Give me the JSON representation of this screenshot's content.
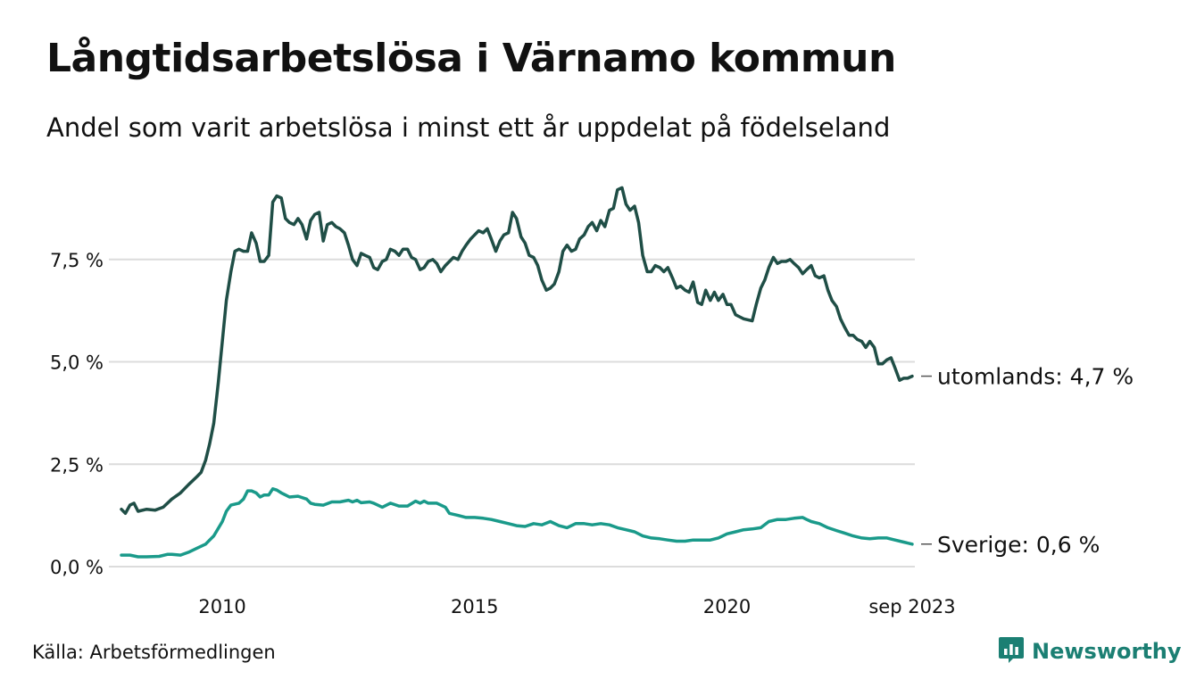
{
  "title": "Långtidsarbetslösa i Värnamo kommun",
  "subtitle": "Andel som varit arbetslösa i minst ett år uppdelat på födelseland",
  "source": "Källa: Arbetsförmedlingen",
  "brand": {
    "name": "Newsworthy",
    "icon": "newsworthy-logo-icon"
  },
  "chart_data": {
    "type": "line",
    "title": "Långtidsarbetslösa i Värnamo kommun",
    "xlabel": "",
    "ylabel": "",
    "xlim": [
      2008.0,
      2023.67
    ],
    "ylim": [
      0,
      9.3
    ],
    "grid": true,
    "x_ticks": [
      {
        "value": 2010,
        "label": "2010"
      },
      {
        "value": 2015,
        "label": "2015"
      },
      {
        "value": 2020,
        "label": "2020"
      },
      {
        "value": 2023.67,
        "label": "sep 2023"
      }
    ],
    "y_ticks": [
      {
        "value": 0,
        "label": "0,0 %"
      },
      {
        "value": 2.5,
        "label": "2,5 %"
      },
      {
        "value": 5.0,
        "label": "5,0 %"
      },
      {
        "value": 7.5,
        "label": "7,5 %"
      }
    ],
    "series": [
      {
        "name": "utomlands",
        "color": "#1f4e46",
        "end_label": "utomlands: 4,7 %",
        "points": [
          [
            2008.0,
            1.4
          ],
          [
            2008.08,
            1.3
          ],
          [
            2008.17,
            1.5
          ],
          [
            2008.25,
            1.55
          ],
          [
            2008.33,
            1.35
          ],
          [
            2008.5,
            1.4
          ],
          [
            2008.67,
            1.38
          ],
          [
            2008.83,
            1.45
          ],
          [
            2009.0,
            1.65
          ],
          [
            2009.17,
            1.8
          ],
          [
            2009.33,
            2.0
          ],
          [
            2009.5,
            2.2
          ],
          [
            2009.58,
            2.3
          ],
          [
            2009.67,
            2.6
          ],
          [
            2009.75,
            3.0
          ],
          [
            2009.83,
            3.5
          ],
          [
            2009.92,
            4.5
          ],
          [
            2010.0,
            5.5
          ],
          [
            2010.08,
            6.5
          ],
          [
            2010.17,
            7.2
          ],
          [
            2010.25,
            7.7
          ],
          [
            2010.33,
            7.75
          ],
          [
            2010.42,
            7.7
          ],
          [
            2010.5,
            7.7
          ],
          [
            2010.58,
            8.15
          ],
          [
            2010.67,
            7.9
          ],
          [
            2010.75,
            7.45
          ],
          [
            2010.83,
            7.45
          ],
          [
            2010.92,
            7.6
          ],
          [
            2011.0,
            8.9
          ],
          [
            2011.08,
            9.05
          ],
          [
            2011.17,
            9.0
          ],
          [
            2011.25,
            8.5
          ],
          [
            2011.33,
            8.4
          ],
          [
            2011.42,
            8.35
          ],
          [
            2011.5,
            8.5
          ],
          [
            2011.58,
            8.35
          ],
          [
            2011.67,
            8.0
          ],
          [
            2011.75,
            8.45
          ],
          [
            2011.83,
            8.6
          ],
          [
            2011.92,
            8.65
          ],
          [
            2012.0,
            7.95
          ],
          [
            2012.08,
            8.35
          ],
          [
            2012.17,
            8.4
          ],
          [
            2012.25,
            8.3
          ],
          [
            2012.33,
            8.25
          ],
          [
            2012.42,
            8.15
          ],
          [
            2012.5,
            7.85
          ],
          [
            2012.58,
            7.5
          ],
          [
            2012.67,
            7.35
          ],
          [
            2012.75,
            7.65
          ],
          [
            2012.83,
            7.6
          ],
          [
            2012.92,
            7.55
          ],
          [
            2013.0,
            7.3
          ],
          [
            2013.08,
            7.25
          ],
          [
            2013.17,
            7.45
          ],
          [
            2013.25,
            7.5
          ],
          [
            2013.33,
            7.75
          ],
          [
            2013.42,
            7.7
          ],
          [
            2013.5,
            7.6
          ],
          [
            2013.58,
            7.75
          ],
          [
            2013.67,
            7.75
          ],
          [
            2013.75,
            7.55
          ],
          [
            2013.83,
            7.5
          ],
          [
            2013.92,
            7.25
          ],
          [
            2014.0,
            7.3
          ],
          [
            2014.08,
            7.45
          ],
          [
            2014.17,
            7.5
          ],
          [
            2014.25,
            7.4
          ],
          [
            2014.33,
            7.2
          ],
          [
            2014.42,
            7.35
          ],
          [
            2014.5,
            7.45
          ],
          [
            2014.58,
            7.55
          ],
          [
            2014.67,
            7.5
          ],
          [
            2014.75,
            7.7
          ],
          [
            2014.83,
            7.85
          ],
          [
            2014.92,
            8.0
          ],
          [
            2015.0,
            8.1
          ],
          [
            2015.08,
            8.2
          ],
          [
            2015.17,
            8.15
          ],
          [
            2015.25,
            8.25
          ],
          [
            2015.33,
            8.0
          ],
          [
            2015.42,
            7.7
          ],
          [
            2015.5,
            7.95
          ],
          [
            2015.58,
            8.1
          ],
          [
            2015.67,
            8.15
          ],
          [
            2015.75,
            8.65
          ],
          [
            2015.83,
            8.5
          ],
          [
            2015.92,
            8.05
          ],
          [
            2016.0,
            7.9
          ],
          [
            2016.08,
            7.6
          ],
          [
            2016.17,
            7.55
          ],
          [
            2016.25,
            7.35
          ],
          [
            2016.33,
            7.0
          ],
          [
            2016.42,
            6.75
          ],
          [
            2016.5,
            6.8
          ],
          [
            2016.58,
            6.9
          ],
          [
            2016.67,
            7.2
          ],
          [
            2016.75,
            7.7
          ],
          [
            2016.83,
            7.85
          ],
          [
            2016.92,
            7.7
          ],
          [
            2017.0,
            7.75
          ],
          [
            2017.08,
            8.0
          ],
          [
            2017.17,
            8.1
          ],
          [
            2017.25,
            8.3
          ],
          [
            2017.33,
            8.4
          ],
          [
            2017.42,
            8.2
          ],
          [
            2017.5,
            8.45
          ],
          [
            2017.58,
            8.3
          ],
          [
            2017.67,
            8.7
          ],
          [
            2017.75,
            8.75
          ],
          [
            2017.83,
            9.2
          ],
          [
            2017.92,
            9.25
          ],
          [
            2018.0,
            8.85
          ],
          [
            2018.08,
            8.7
          ],
          [
            2018.17,
            8.8
          ],
          [
            2018.25,
            8.4
          ],
          [
            2018.33,
            7.6
          ],
          [
            2018.42,
            7.2
          ],
          [
            2018.5,
            7.2
          ],
          [
            2018.58,
            7.35
          ],
          [
            2018.67,
            7.3
          ],
          [
            2018.75,
            7.2
          ],
          [
            2018.83,
            7.3
          ],
          [
            2018.92,
            7.05
          ],
          [
            2019.0,
            6.8
          ],
          [
            2019.08,
            6.85
          ],
          [
            2019.17,
            6.75
          ],
          [
            2019.25,
            6.7
          ],
          [
            2019.33,
            6.95
          ],
          [
            2019.42,
            6.45
          ],
          [
            2019.5,
            6.4
          ],
          [
            2019.58,
            6.75
          ],
          [
            2019.67,
            6.5
          ],
          [
            2019.75,
            6.7
          ],
          [
            2019.83,
            6.5
          ],
          [
            2019.92,
            6.65
          ],
          [
            2020.0,
            6.4
          ],
          [
            2020.08,
            6.4
          ],
          [
            2020.17,
            6.15
          ],
          [
            2020.25,
            6.1
          ],
          [
            2020.33,
            6.05
          ],
          [
            2020.5,
            6.0
          ],
          [
            2020.58,
            6.4
          ],
          [
            2020.67,
            6.8
          ],
          [
            2020.75,
            7.0
          ],
          [
            2020.83,
            7.3
          ],
          [
            2020.92,
            7.55
          ],
          [
            2021.0,
            7.4
          ],
          [
            2021.08,
            7.45
          ],
          [
            2021.17,
            7.45
          ],
          [
            2021.25,
            7.5
          ],
          [
            2021.33,
            7.4
          ],
          [
            2021.42,
            7.3
          ],
          [
            2021.5,
            7.15
          ],
          [
            2021.58,
            7.25
          ],
          [
            2021.67,
            7.35
          ],
          [
            2021.75,
            7.1
          ],
          [
            2021.83,
            7.05
          ],
          [
            2021.92,
            7.1
          ],
          [
            2022.0,
            6.75
          ],
          [
            2022.08,
            6.5
          ],
          [
            2022.17,
            6.35
          ],
          [
            2022.25,
            6.05
          ],
          [
            2022.33,
            5.85
          ],
          [
            2022.42,
            5.65
          ],
          [
            2022.5,
            5.65
          ],
          [
            2022.58,
            5.55
          ],
          [
            2022.67,
            5.5
          ],
          [
            2022.75,
            5.35
          ],
          [
            2022.83,
            5.5
          ],
          [
            2022.92,
            5.35
          ],
          [
            2023.0,
            4.95
          ],
          [
            2023.08,
            4.95
          ],
          [
            2023.17,
            5.05
          ],
          [
            2023.25,
            5.1
          ],
          [
            2023.33,
            4.85
          ],
          [
            2023.42,
            4.55
          ],
          [
            2023.5,
            4.6
          ],
          [
            2023.58,
            4.6
          ],
          [
            2023.67,
            4.65
          ]
        ]
      },
      {
        "name": "Sverige",
        "color": "#1a9a8a",
        "end_label": "Sverige: 0,6 %",
        "points": [
          [
            2008.0,
            0.28
          ],
          [
            2008.17,
            0.28
          ],
          [
            2008.33,
            0.24
          ],
          [
            2008.5,
            0.24
          ],
          [
            2008.75,
            0.25
          ],
          [
            2008.92,
            0.3
          ],
          [
            2009.0,
            0.3
          ],
          [
            2009.17,
            0.28
          ],
          [
            2009.33,
            0.35
          ],
          [
            2009.5,
            0.45
          ],
          [
            2009.67,
            0.55
          ],
          [
            2009.75,
            0.65
          ],
          [
            2009.83,
            0.75
          ],
          [
            2010.0,
            1.1
          ],
          [
            2010.08,
            1.35
          ],
          [
            2010.17,
            1.5
          ],
          [
            2010.33,
            1.55
          ],
          [
            2010.42,
            1.65
          ],
          [
            2010.5,
            1.85
          ],
          [
            2010.58,
            1.85
          ],
          [
            2010.67,
            1.8
          ],
          [
            2010.75,
            1.7
          ],
          [
            2010.83,
            1.75
          ],
          [
            2010.92,
            1.75
          ],
          [
            2011.0,
            1.9
          ],
          [
            2011.08,
            1.87
          ],
          [
            2011.17,
            1.8
          ],
          [
            2011.25,
            1.75
          ],
          [
            2011.33,
            1.7
          ],
          [
            2011.5,
            1.72
          ],
          [
            2011.67,
            1.65
          ],
          [
            2011.75,
            1.55
          ],
          [
            2011.83,
            1.52
          ],
          [
            2012.0,
            1.5
          ],
          [
            2012.17,
            1.58
          ],
          [
            2012.33,
            1.58
          ],
          [
            2012.5,
            1.62
          ],
          [
            2012.58,
            1.58
          ],
          [
            2012.67,
            1.62
          ],
          [
            2012.75,
            1.56
          ],
          [
            2012.92,
            1.58
          ],
          [
            2013.0,
            1.55
          ],
          [
            2013.17,
            1.45
          ],
          [
            2013.33,
            1.55
          ],
          [
            2013.5,
            1.48
          ],
          [
            2013.67,
            1.48
          ],
          [
            2013.83,
            1.6
          ],
          [
            2013.92,
            1.55
          ],
          [
            2014.0,
            1.6
          ],
          [
            2014.08,
            1.55
          ],
          [
            2014.25,
            1.55
          ],
          [
            2014.42,
            1.45
          ],
          [
            2014.5,
            1.3
          ],
          [
            2014.67,
            1.25
          ],
          [
            2014.83,
            1.2
          ],
          [
            2015.0,
            1.2
          ],
          [
            2015.17,
            1.18
          ],
          [
            2015.33,
            1.15
          ],
          [
            2015.5,
            1.1
          ],
          [
            2015.67,
            1.05
          ],
          [
            2015.83,
            1.0
          ],
          [
            2016.0,
            0.98
          ],
          [
            2016.17,
            1.05
          ],
          [
            2016.33,
            1.02
          ],
          [
            2016.5,
            1.1
          ],
          [
            2016.67,
            1.0
          ],
          [
            2016.83,
            0.95
          ],
          [
            2017.0,
            1.05
          ],
          [
            2017.17,
            1.05
          ],
          [
            2017.33,
            1.02
          ],
          [
            2017.5,
            1.05
          ],
          [
            2017.67,
            1.02
          ],
          [
            2017.83,
            0.95
          ],
          [
            2018.0,
            0.9
          ],
          [
            2018.17,
            0.85
          ],
          [
            2018.33,
            0.75
          ],
          [
            2018.5,
            0.7
          ],
          [
            2018.67,
            0.68
          ],
          [
            2018.83,
            0.65
          ],
          [
            2019.0,
            0.62
          ],
          [
            2019.17,
            0.62
          ],
          [
            2019.33,
            0.65
          ],
          [
            2019.5,
            0.65
          ],
          [
            2019.67,
            0.65
          ],
          [
            2019.83,
            0.7
          ],
          [
            2020.0,
            0.8
          ],
          [
            2020.17,
            0.85
          ],
          [
            2020.33,
            0.9
          ],
          [
            2020.5,
            0.92
          ],
          [
            2020.67,
            0.95
          ],
          [
            2020.83,
            1.1
          ],
          [
            2021.0,
            1.15
          ],
          [
            2021.17,
            1.15
          ],
          [
            2021.33,
            1.18
          ],
          [
            2021.5,
            1.2
          ],
          [
            2021.58,
            1.15
          ],
          [
            2021.67,
            1.1
          ],
          [
            2021.83,
            1.05
          ],
          [
            2022.0,
            0.95
          ],
          [
            2022.17,
            0.88
          ],
          [
            2022.33,
            0.82
          ],
          [
            2022.5,
            0.75
          ],
          [
            2022.67,
            0.7
          ],
          [
            2022.83,
            0.68
          ],
          [
            2023.0,
            0.7
          ],
          [
            2023.17,
            0.7
          ],
          [
            2023.33,
            0.65
          ],
          [
            2023.5,
            0.6
          ],
          [
            2023.67,
            0.55
          ]
        ]
      }
    ]
  }
}
